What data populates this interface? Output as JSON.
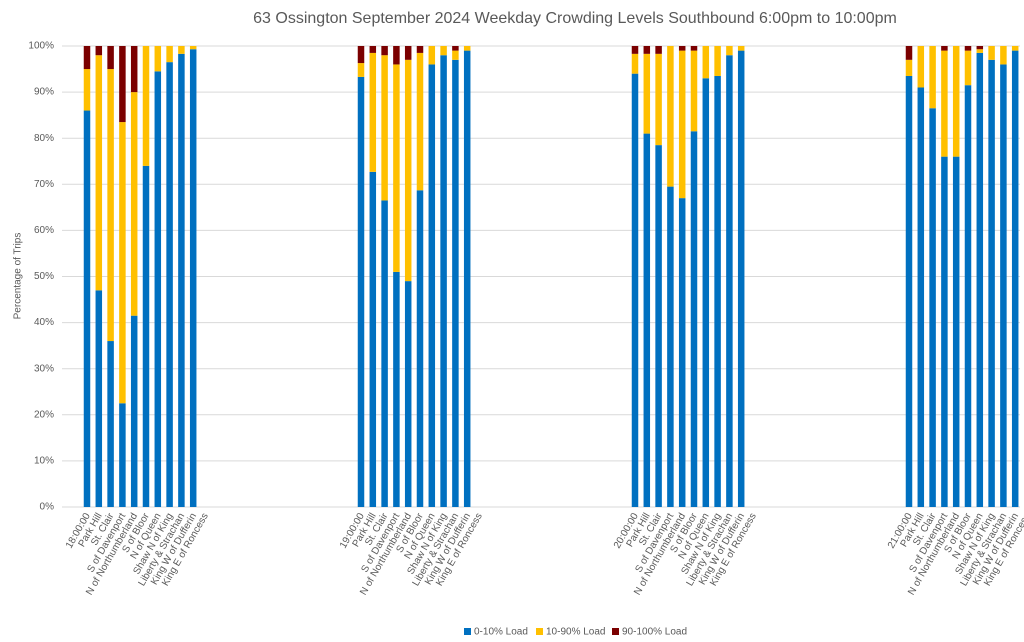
{
  "chart_data": {
    "type": "stacked-bar",
    "title": "63 Ossington September 2024  Weekday Crowding Levels Southbound 6:00pm to 10:00pm",
    "y_label": "Percentage of Trips",
    "groups": [
      "18:00:00",
      "19:00:00",
      "20:00:00",
      "21:00:00"
    ],
    "categories": [
      "Park Hill",
      "St. Clair",
      "S of Davenport",
      "N of Northumberland",
      "S of Bloor",
      "N of Queen",
      "Shaw N of King",
      "Liberty & Strachan",
      "King W of Dufferin",
      "King E of Roncess"
    ],
    "series": [
      {
        "name": "0-10% Load",
        "color": "#0070c0",
        "values": [
          [
            86,
            47,
            36,
            22.5,
            41.5,
            74,
            94.5,
            96.5,
            98.3,
            99.3
          ],
          [
            93.3,
            72.7,
            66.5,
            51,
            49,
            68.7,
            96,
            98,
            97,
            99
          ],
          [
            94,
            81,
            78.5,
            69.5,
            67,
            81.5,
            93,
            93.5,
            98,
            99
          ],
          [
            93.5,
            91,
            86.5,
            76,
            76,
            91.5,
            98.5,
            97,
            96,
            99
          ]
        ]
      },
      {
        "name": "10-90% Load",
        "color": "#ffc000",
        "values": [
          [
            9,
            51,
            59,
            61,
            48.5,
            26,
            5.5,
            3.5,
            1.7,
            0.7
          ],
          [
            3,
            25.8,
            31.5,
            45,
            48,
            29.8,
            4,
            2,
            2,
            1
          ],
          [
            4.3,
            17.3,
            19.8,
            30.5,
            32,
            17.5,
            7,
            6.5,
            2,
            1
          ],
          [
            3.5,
            9,
            13.5,
            23,
            24,
            7.5,
            0.8,
            3,
            4,
            1
          ]
        ]
      },
      {
        "name": "90-100% Load",
        "color": "#7b0000",
        "values": [
          [
            5,
            2,
            5,
            16.5,
            10,
            0,
            0,
            0,
            0,
            0
          ],
          [
            3.7,
            1.5,
            2,
            4,
            3,
            1.5,
            0,
            0,
            1,
            0
          ],
          [
            1.7,
            1.7,
            1.7,
            0,
            1,
            1,
            0,
            0,
            0,
            0
          ],
          [
            3,
            0,
            0,
            1,
            0,
            1,
            0.7,
            0,
            0,
            0
          ]
        ]
      }
    ],
    "ylim": [
      0,
      100
    ],
    "yticks": [
      {
        "value": 0,
        "label": "0%"
      },
      {
        "value": 10,
        "label": "10%"
      },
      {
        "value": 20,
        "label": "20%"
      },
      {
        "value": 30,
        "label": "30%"
      },
      {
        "value": 40,
        "label": "40%"
      },
      {
        "value": 50,
        "label": "50%"
      },
      {
        "value": 60,
        "label": "60%"
      },
      {
        "value": 70,
        "label": "70%"
      },
      {
        "value": 80,
        "label": "80%"
      },
      {
        "value": 90,
        "label": "90%"
      },
      {
        "value": 100,
        "label": "100%"
      }
    ],
    "grid": true,
    "legend": "bottom"
  }
}
